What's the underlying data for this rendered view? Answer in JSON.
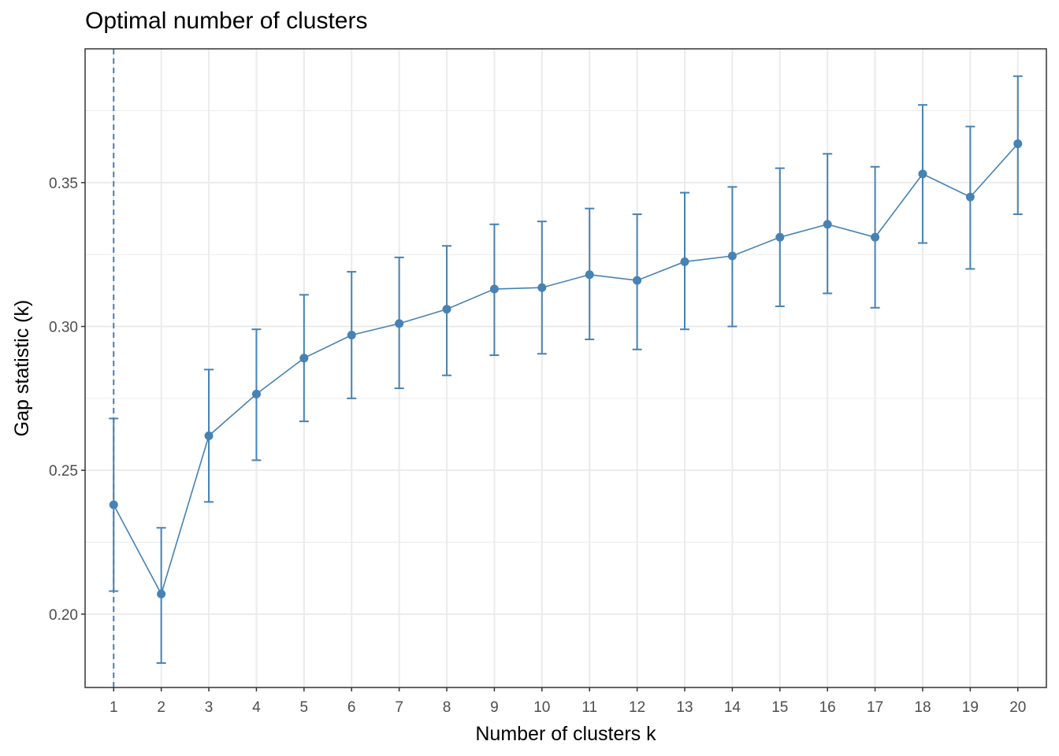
{
  "chart_data": {
    "type": "line",
    "title": "Optimal number of clusters",
    "xlabel": "Number of clusters k",
    "ylabel": "Gap statistic (k)",
    "x": [
      1,
      2,
      3,
      4,
      5,
      6,
      7,
      8,
      9,
      10,
      11,
      12,
      13,
      14,
      15,
      16,
      17,
      18,
      19,
      20
    ],
    "x_tick_labels": [
      "1",
      "2",
      "3",
      "4",
      "5",
      "6",
      "7",
      "8",
      "9",
      "10",
      "11",
      "12",
      "13",
      "14",
      "15",
      "16",
      "17",
      "18",
      "19",
      "20"
    ],
    "series": [
      {
        "values": [
          0.238,
          0.207,
          0.262,
          0.2765,
          0.289,
          0.297,
          0.301,
          0.306,
          0.313,
          0.3135,
          0.318,
          0.316,
          0.3225,
          0.3245,
          0.331,
          0.3355,
          0.331,
          0.353,
          0.345,
          0.3635
        ],
        "error_lower": [
          0.208,
          0.183,
          0.239,
          0.2535,
          0.267,
          0.275,
          0.2785,
          0.283,
          0.29,
          0.2905,
          0.2955,
          0.292,
          0.299,
          0.3,
          0.307,
          0.3115,
          0.3065,
          0.329,
          0.32,
          0.339
        ],
        "error_upper": [
          0.268,
          0.23,
          0.285,
          0.299,
          0.311,
          0.319,
          0.324,
          0.328,
          0.3355,
          0.3365,
          0.341,
          0.339,
          0.3465,
          0.3485,
          0.355,
          0.36,
          0.3555,
          0.377,
          0.3695,
          0.387
        ]
      }
    ],
    "optimal_k": 1,
    "y_ticks": [
      0.2,
      0.25,
      0.3,
      0.35
    ],
    "y_tick_labels": [
      "0.20",
      "0.25",
      "0.30",
      "0.35"
    ],
    "ylim": [
      0.1745,
      0.3965
    ],
    "xlim": [
      0.4,
      20.6
    ],
    "grid": true,
    "legend": "none",
    "colors": {
      "series": "#4682b4",
      "grid": "#ebebeb",
      "panel_border": "#333333",
      "tick_text": "#4d4d4d"
    }
  }
}
